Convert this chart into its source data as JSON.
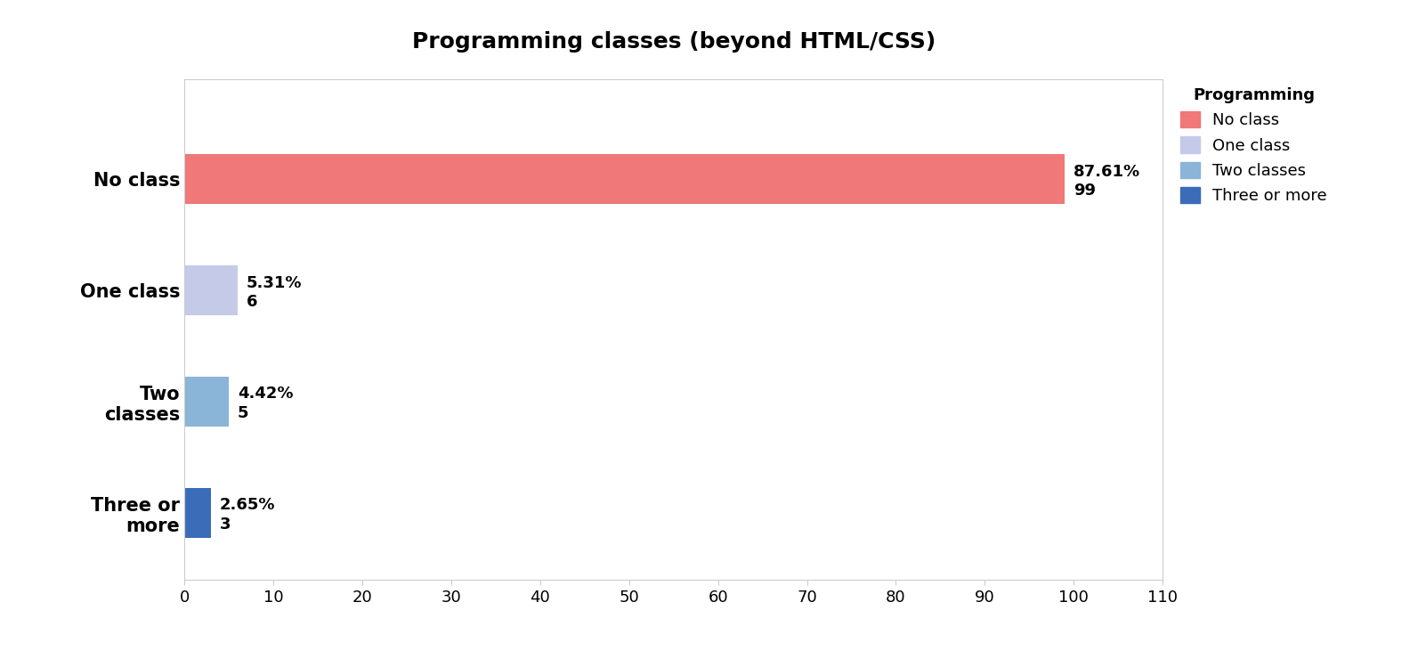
{
  "title": "Programming classes (beyond HTML/CSS)",
  "categories": [
    "No class",
    "One class",
    "Two\nclasses",
    "Three or\nmore"
  ],
  "values": [
    99,
    6,
    5,
    3
  ],
  "percentages": [
    "87.61%",
    "5.31%",
    "4.42%",
    "2.65%"
  ],
  "bar_colors": [
    "#f07878",
    "#c5cae9",
    "#8ab4d8",
    "#3a6cb8"
  ],
  "xlim": [
    0,
    110
  ],
  "xticks": [
    0,
    10,
    20,
    30,
    40,
    50,
    60,
    70,
    80,
    90,
    100,
    110
  ],
  "legend_title": "Programming",
  "legend_labels": [
    "No class",
    "One class",
    "Two classes",
    "Three or more"
  ],
  "legend_colors": [
    "#f07878",
    "#c5cae9",
    "#8ab4d8",
    "#3a6cb8"
  ],
  "background_color": "#ffffff",
  "title_fontsize": 18,
  "label_fontsize": 15,
  "tick_fontsize": 13,
  "annotation_fontsize": 13
}
